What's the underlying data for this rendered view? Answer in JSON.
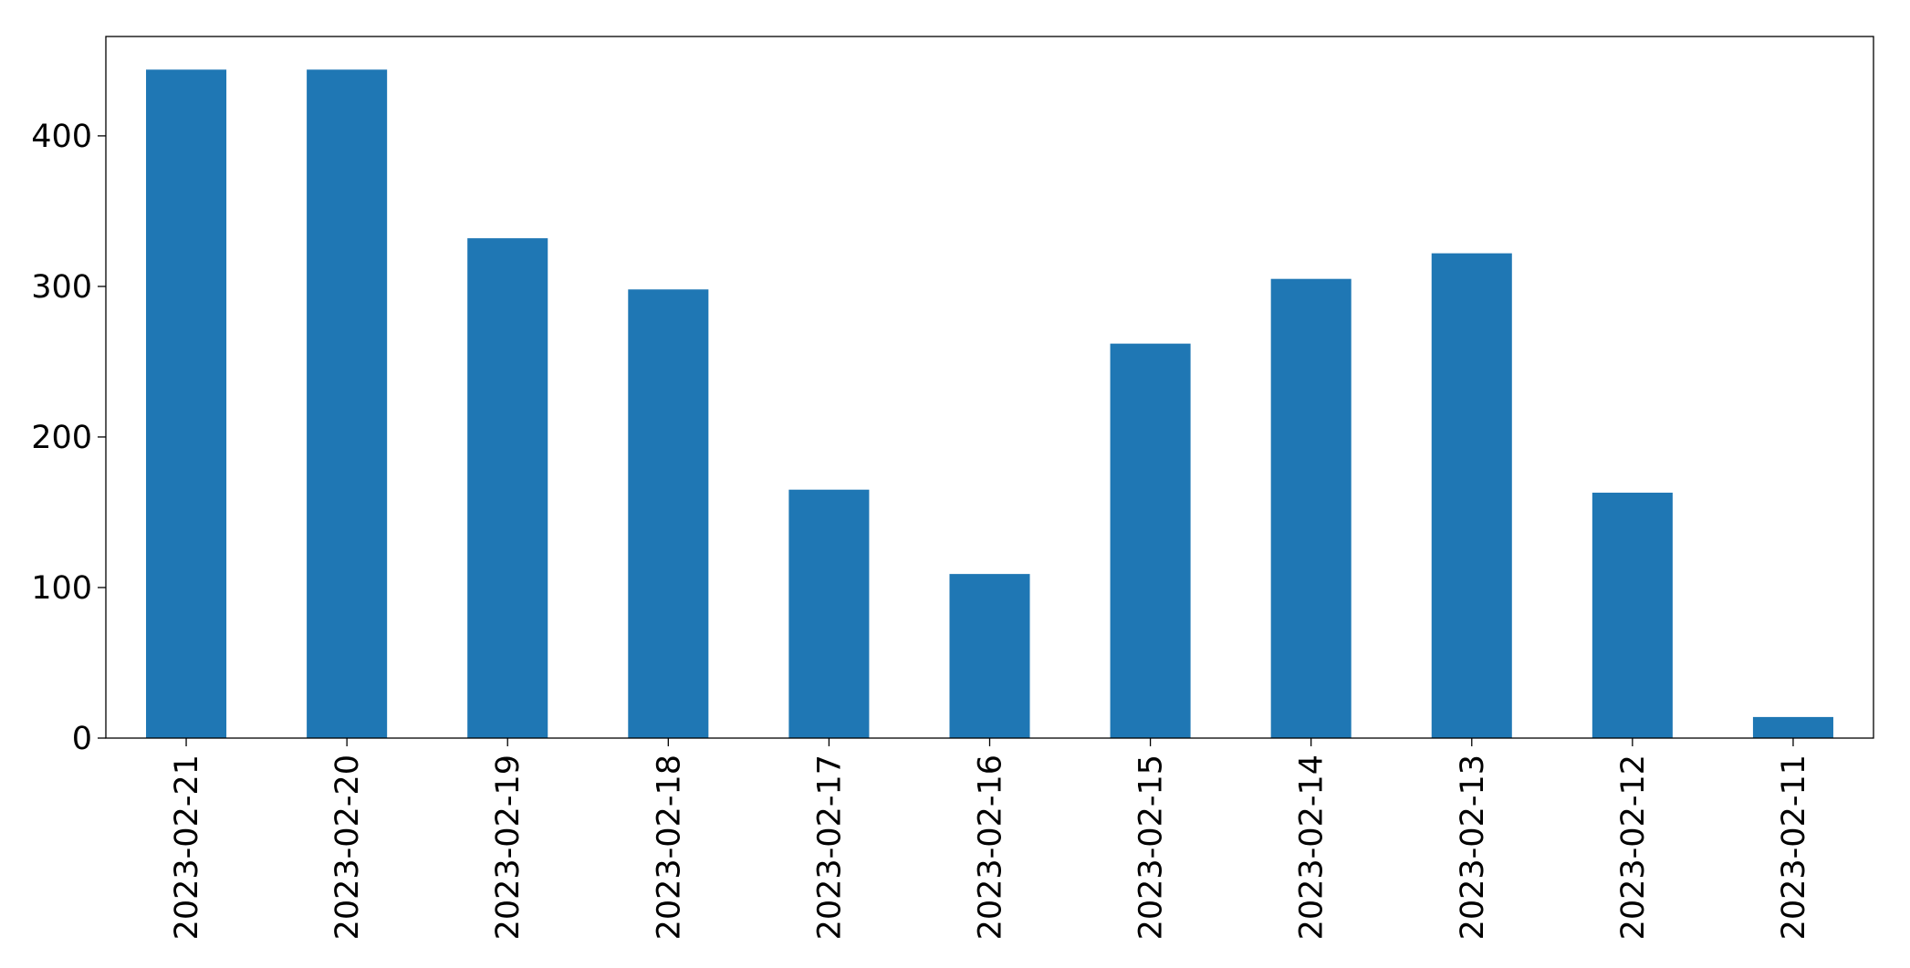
{
  "chart_data": {
    "type": "bar",
    "categories": [
      "2023-02-21",
      "2023-02-20",
      "2023-02-19",
      "2023-02-18",
      "2023-02-17",
      "2023-02-16",
      "2023-02-15",
      "2023-02-14",
      "2023-02-13",
      "2023-02-12",
      "2023-02-11"
    ],
    "values": [
      444,
      444,
      332,
      298,
      165,
      109,
      262,
      305,
      322,
      163,
      14
    ],
    "color": "#1f77b4",
    "ylim": [
      0,
      466
    ],
    "yticks": [
      0,
      100,
      200,
      300,
      400
    ],
    "grid": false
  }
}
